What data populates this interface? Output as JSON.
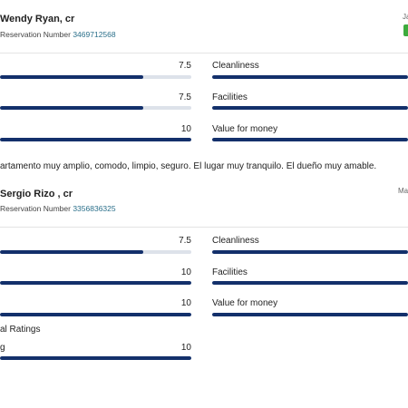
{
  "reviews": [
    {
      "name": "Wendy Ryan, cr",
      "reservation_label": "Reservation Number",
      "reservation_number": "3469712568",
      "date": "Ja",
      "badge_color": "#3dab3d",
      "left_scores": [
        {
          "value": "7.5",
          "fraction": 0.75
        },
        {
          "value": "7.5",
          "fraction": 0.75
        },
        {
          "value": "10",
          "fraction": 1.0
        }
      ],
      "right_labels": [
        "Cleanliness",
        "Facilities",
        "Value for money"
      ],
      "comment": "artamento muy amplio, comodo, limpio, seguro. El lugar muy tranquilo. El dueño muy amable."
    },
    {
      "name": "Sergio Rizo , cr",
      "reservation_label": "Reservation Number",
      "reservation_number": "3356836325",
      "date": "Ma",
      "left_scores": [
        {
          "value": "7.5",
          "fraction": 0.75
        },
        {
          "value": "10",
          "fraction": 1.0
        },
        {
          "value": "10",
          "fraction": 1.0
        }
      ],
      "right_labels": [
        "Cleanliness",
        "Facilities",
        "Value for money"
      ],
      "extra_section_title": "al Ratings",
      "extra_item": {
        "label": "g",
        "value": "10",
        "fraction": 1.0
      }
    }
  ],
  "colors": {
    "bar_fill": "#13306b",
    "bar_track": "#dde2ea",
    "link": "#2a6f8a"
  }
}
